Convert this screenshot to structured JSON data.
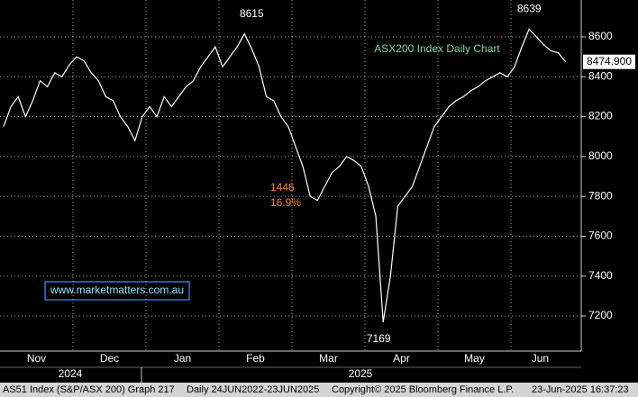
{
  "chart_data": {
    "type": "line",
    "title": "ASX200 Index Daily Chart",
    "annotations": [
      "1446",
      "16.9%"
    ],
    "watermark": "www.marketmatters.com.au",
    "years": [
      "2024",
      "2025"
    ],
    "footer": [
      "AS51 Index (S&P/ASX 200) Graph 217",
      "Daily 24JUN2022-23JUN2025",
      "Copyright© 2025 Bloomberg Finance L.P.",
      "23-Jun-2025 16:37:23"
    ],
    "color": "#ffffff",
    "categories": [
      null,
      null,
      null,
      null,
      null,
      "Nov",
      null,
      null,
      null,
      null,
      null,
      null,
      null,
      null,
      null,
      "Dec",
      null,
      null,
      null,
      null,
      null,
      null,
      null,
      null,
      null,
      "Jan",
      null,
      null,
      null,
      null,
      null,
      null,
      null,
      null,
      null,
      "Feb",
      null,
      null,
      null,
      null,
      null,
      null,
      null,
      null,
      null,
      "Mar",
      null,
      null,
      null,
      null,
      null,
      null,
      null,
      null,
      null,
      "Apr",
      null,
      null,
      null,
      null,
      null,
      null,
      null,
      null,
      null,
      "May",
      null,
      null,
      null,
      null,
      null,
      null,
      null,
      null,
      "Jun",
      null,
      null,
      null
    ],
    "values": [
      8150,
      8250,
      8300,
      8200,
      8280,
      8380,
      8350,
      8420,
      8400,
      8460,
      8500,
      8480,
      8420,
      8380,
      8300,
      8280,
      8200,
      8150,
      8080,
      8200,
      8250,
      8200,
      8300,
      8250,
      8300,
      8350,
      8380,
      8450,
      8500,
      8550,
      8450,
      8500,
      8550,
      8615,
      8540,
      8450,
      8300,
      8280,
      8200,
      8150,
      8050,
      7950,
      7800,
      7780,
      7850,
      7920,
      7950,
      8000,
      7980,
      7950,
      7850,
      7700,
      7169,
      7400,
      7750,
      7800,
      7850,
      7950,
      8050,
      8150,
      8200,
      8250,
      8280,
      8300,
      8330,
      8350,
      8380,
      8400,
      8420,
      8400,
      8450,
      8550,
      8639,
      8600,
      8560,
      8530,
      8520,
      8474.9
    ],
    "value_labels": [
      null,
      null,
      null,
      null,
      null,
      null,
      null,
      null,
      null,
      null,
      null,
      null,
      null,
      null,
      null,
      null,
      null,
      null,
      null,
      null,
      null,
      null,
      null,
      null,
      null,
      null,
      null,
      null,
      null,
      null,
      null,
      null,
      null,
      null,
      null,
      null,
      null,
      null,
      null,
      null,
      null,
      null,
      null,
      null,
      null,
      null,
      null,
      null,
      null,
      null,
      null,
      null,
      null,
      null,
      null,
      null,
      null,
      null,
      null,
      null,
      null,
      null,
      null,
      null,
      null,
      null,
      null,
      null,
      null,
      null,
      null,
      null,
      null,
      null,
      null,
      null,
      null,
      "8474.900"
    ],
    "ylim": [
      7024,
      8785
    ],
    "yticks": [
      7200,
      7400,
      7600,
      7800,
      8000,
      8200,
      8400,
      8600
    ],
    "grid": true
  }
}
